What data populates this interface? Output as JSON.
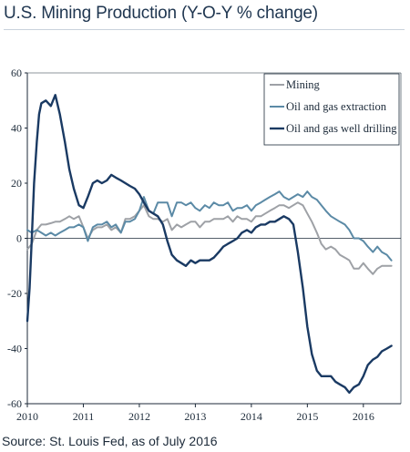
{
  "title": "U.S. Mining Production (Y-O-Y % change)",
  "source": "Source: St. Louis Fed, as of July 2016",
  "chart_data": {
    "type": "line",
    "title": "U.S. Mining Production (Y-O-Y % change)",
    "xlabel": "",
    "ylabel": "",
    "xlim": [
      2010.0,
      2016.67
    ],
    "ylim": [
      -60,
      60
    ],
    "x_ticks": [
      "2010",
      "2011",
      "2012",
      "2013",
      "2014",
      "2015",
      "2016"
    ],
    "y_ticks": [
      "60",
      "40",
      "20",
      "0",
      "-20",
      "-40",
      "-60"
    ],
    "y_tick_values": [
      60,
      40,
      20,
      0,
      -20,
      -40,
      -60
    ],
    "grid": false,
    "legend_position": "top-right",
    "series": [
      {
        "name": "Mining",
        "color": "#9ea1a6",
        "points": [
          [
            2010.0,
            -4
          ],
          [
            2010.08,
            -2
          ],
          [
            2010.17,
            3
          ],
          [
            2010.25,
            5
          ],
          [
            2010.33,
            5
          ],
          [
            2010.42,
            5.5
          ],
          [
            2010.5,
            6
          ],
          [
            2010.58,
            6
          ],
          [
            2010.67,
            7
          ],
          [
            2010.75,
            8
          ],
          [
            2010.83,
            7
          ],
          [
            2010.92,
            8
          ],
          [
            2011.0,
            4
          ],
          [
            2011.08,
            0
          ],
          [
            2011.17,
            3
          ],
          [
            2011.25,
            4
          ],
          [
            2011.33,
            4
          ],
          [
            2011.42,
            5
          ],
          [
            2011.5,
            3
          ],
          [
            2011.58,
            4
          ],
          [
            2011.67,
            2
          ],
          [
            2011.75,
            7
          ],
          [
            2011.83,
            7
          ],
          [
            2011.92,
            8
          ],
          [
            2012.0,
            10
          ],
          [
            2012.08,
            12
          ],
          [
            2012.17,
            8
          ],
          [
            2012.25,
            7
          ],
          [
            2012.33,
            7
          ],
          [
            2012.42,
            6
          ],
          [
            2012.5,
            7
          ],
          [
            2012.58,
            3
          ],
          [
            2012.67,
            5
          ],
          [
            2012.75,
            4
          ],
          [
            2012.83,
            5
          ],
          [
            2012.92,
            6
          ],
          [
            2013.0,
            6
          ],
          [
            2013.08,
            4
          ],
          [
            2013.17,
            6
          ],
          [
            2013.25,
            6
          ],
          [
            2013.33,
            7
          ],
          [
            2013.42,
            7
          ],
          [
            2013.5,
            7
          ],
          [
            2013.58,
            8
          ],
          [
            2013.67,
            6
          ],
          [
            2013.75,
            8
          ],
          [
            2013.83,
            7
          ],
          [
            2013.92,
            7
          ],
          [
            2014.0,
            6
          ],
          [
            2014.08,
            8
          ],
          [
            2014.17,
            8
          ],
          [
            2014.25,
            9
          ],
          [
            2014.33,
            10
          ],
          [
            2014.42,
            11
          ],
          [
            2014.5,
            12
          ],
          [
            2014.58,
            12
          ],
          [
            2014.67,
            11
          ],
          [
            2014.75,
            12
          ],
          [
            2014.83,
            13
          ],
          [
            2014.92,
            12
          ],
          [
            2015.0,
            9
          ],
          [
            2015.08,
            6
          ],
          [
            2015.17,
            2
          ],
          [
            2015.25,
            -2
          ],
          [
            2015.33,
            -4
          ],
          [
            2015.42,
            -3
          ],
          [
            2015.5,
            -4
          ],
          [
            2015.58,
            -6
          ],
          [
            2015.67,
            -7
          ],
          [
            2015.75,
            -8
          ],
          [
            2015.83,
            -11
          ],
          [
            2015.92,
            -11
          ],
          [
            2016.0,
            -9
          ],
          [
            2016.08,
            -11
          ],
          [
            2016.17,
            -13
          ],
          [
            2016.25,
            -11
          ],
          [
            2016.33,
            -10
          ],
          [
            2016.42,
            -10
          ],
          [
            2016.5,
            -10
          ]
        ]
      },
      {
        "name": "Oil and gas extraction",
        "color": "#5b8aa6",
        "points": [
          [
            2010.0,
            3
          ],
          [
            2010.08,
            2
          ],
          [
            2010.17,
            3
          ],
          [
            2010.25,
            2
          ],
          [
            2010.33,
            1
          ],
          [
            2010.42,
            2
          ],
          [
            2010.5,
            1
          ],
          [
            2010.58,
            2
          ],
          [
            2010.67,
            3
          ],
          [
            2010.75,
            4
          ],
          [
            2010.83,
            4
          ],
          [
            2010.92,
            5
          ],
          [
            2011.0,
            4
          ],
          [
            2011.08,
            -1
          ],
          [
            2011.17,
            4
          ],
          [
            2011.25,
            5
          ],
          [
            2011.33,
            5
          ],
          [
            2011.42,
            6
          ],
          [
            2011.5,
            4
          ],
          [
            2011.58,
            5
          ],
          [
            2011.67,
            2
          ],
          [
            2011.75,
            6
          ],
          [
            2011.83,
            6
          ],
          [
            2011.92,
            7
          ],
          [
            2012.0,
            10
          ],
          [
            2012.08,
            15
          ],
          [
            2012.17,
            10
          ],
          [
            2012.25,
            9
          ],
          [
            2012.33,
            13
          ],
          [
            2012.42,
            13
          ],
          [
            2012.5,
            13
          ],
          [
            2012.58,
            8
          ],
          [
            2012.67,
            13
          ],
          [
            2012.75,
            13
          ],
          [
            2012.83,
            12
          ],
          [
            2012.92,
            13
          ],
          [
            2013.0,
            11
          ],
          [
            2013.08,
            10
          ],
          [
            2013.17,
            12
          ],
          [
            2013.25,
            11
          ],
          [
            2013.33,
            13
          ],
          [
            2013.42,
            12
          ],
          [
            2013.5,
            12
          ],
          [
            2013.58,
            13
          ],
          [
            2013.67,
            10
          ],
          [
            2013.75,
            11
          ],
          [
            2013.83,
            11
          ],
          [
            2013.92,
            12
          ],
          [
            2014.0,
            10
          ],
          [
            2014.08,
            12
          ],
          [
            2014.17,
            13
          ],
          [
            2014.25,
            14
          ],
          [
            2014.33,
            15
          ],
          [
            2014.42,
            16
          ],
          [
            2014.5,
            17
          ],
          [
            2014.58,
            15
          ],
          [
            2014.67,
            14
          ],
          [
            2014.75,
            15
          ],
          [
            2014.83,
            16
          ],
          [
            2014.92,
            15
          ],
          [
            2015.0,
            17
          ],
          [
            2015.08,
            15
          ],
          [
            2015.17,
            14
          ],
          [
            2015.25,
            12
          ],
          [
            2015.33,
            10
          ],
          [
            2015.42,
            8
          ],
          [
            2015.5,
            7
          ],
          [
            2015.58,
            6
          ],
          [
            2015.67,
            5
          ],
          [
            2015.75,
            3
          ],
          [
            2015.83,
            0
          ],
          [
            2015.92,
            0
          ],
          [
            2016.0,
            -1
          ],
          [
            2016.08,
            -3
          ],
          [
            2016.17,
            -5
          ],
          [
            2016.25,
            -3
          ],
          [
            2016.33,
            -5
          ],
          [
            2016.42,
            -6
          ],
          [
            2016.5,
            -8
          ]
        ]
      },
      {
        "name": "Oil and gas well drilling",
        "color": "#1a3a63",
        "points": [
          [
            2010.0,
            -30
          ],
          [
            2010.04,
            -18
          ],
          [
            2010.08,
            0
          ],
          [
            2010.12,
            20
          ],
          [
            2010.17,
            35
          ],
          [
            2010.21,
            45
          ],
          [
            2010.25,
            49
          ],
          [
            2010.33,
            50
          ],
          [
            2010.42,
            48
          ],
          [
            2010.5,
            52
          ],
          [
            2010.58,
            45
          ],
          [
            2010.67,
            35
          ],
          [
            2010.75,
            25
          ],
          [
            2010.83,
            18
          ],
          [
            2010.92,
            12
          ],
          [
            2011.0,
            11
          ],
          [
            2011.08,
            15
          ],
          [
            2011.17,
            20
          ],
          [
            2011.25,
            21
          ],
          [
            2011.33,
            20
          ],
          [
            2011.42,
            21
          ],
          [
            2011.5,
            23
          ],
          [
            2011.58,
            22
          ],
          [
            2011.67,
            21
          ],
          [
            2011.75,
            20
          ],
          [
            2011.83,
            19
          ],
          [
            2011.92,
            18
          ],
          [
            2012.0,
            16
          ],
          [
            2012.08,
            13
          ],
          [
            2012.17,
            10
          ],
          [
            2012.25,
            9
          ],
          [
            2012.33,
            8
          ],
          [
            2012.42,
            5
          ],
          [
            2012.5,
            -1
          ],
          [
            2012.58,
            -6
          ],
          [
            2012.67,
            -8
          ],
          [
            2012.75,
            -9
          ],
          [
            2012.83,
            -10
          ],
          [
            2012.92,
            -8
          ],
          [
            2013.0,
            -9
          ],
          [
            2013.08,
            -8
          ],
          [
            2013.17,
            -8
          ],
          [
            2013.25,
            -8
          ],
          [
            2013.33,
            -7
          ],
          [
            2013.42,
            -5
          ],
          [
            2013.5,
            -3
          ],
          [
            2013.58,
            -2
          ],
          [
            2013.67,
            -1
          ],
          [
            2013.75,
            0
          ],
          [
            2013.83,
            2
          ],
          [
            2013.92,
            3
          ],
          [
            2014.0,
            2
          ],
          [
            2014.08,
            4
          ],
          [
            2014.17,
            5
          ],
          [
            2014.25,
            5
          ],
          [
            2014.33,
            6
          ],
          [
            2014.42,
            6
          ],
          [
            2014.5,
            7
          ],
          [
            2014.58,
            8
          ],
          [
            2014.67,
            7
          ],
          [
            2014.75,
            5
          ],
          [
            2014.83,
            -5
          ],
          [
            2014.92,
            -18
          ],
          [
            2015.0,
            -32
          ],
          [
            2015.08,
            -42
          ],
          [
            2015.17,
            -48
          ],
          [
            2015.25,
            -50
          ],
          [
            2015.33,
            -50
          ],
          [
            2015.42,
            -50
          ],
          [
            2015.5,
            -52
          ],
          [
            2015.58,
            -53
          ],
          [
            2015.67,
            -54
          ],
          [
            2015.75,
            -56
          ],
          [
            2015.83,
            -54
          ],
          [
            2015.92,
            -53
          ],
          [
            2016.0,
            -50
          ],
          [
            2016.08,
            -46
          ],
          [
            2016.17,
            -44
          ],
          [
            2016.25,
            -43
          ],
          [
            2016.33,
            -41
          ],
          [
            2016.42,
            -40
          ],
          [
            2016.5,
            -39
          ]
        ]
      }
    ]
  }
}
